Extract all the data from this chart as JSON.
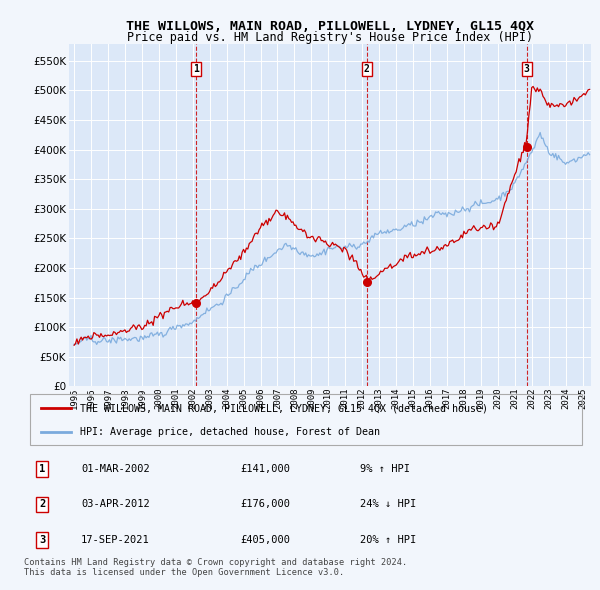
{
  "title": "THE WILLOWS, MAIN ROAD, PILLOWELL, LYDNEY, GL15 4QX",
  "subtitle": "Price paid vs. HM Land Registry's House Price Index (HPI)",
  "title_fontsize": 9.5,
  "subtitle_fontsize": 8.5,
  "ylabel_ticks": [
    "£0",
    "£50K",
    "£100K",
    "£150K",
    "£200K",
    "£250K",
    "£300K",
    "£350K",
    "£400K",
    "£450K",
    "£500K",
    "£550K"
  ],
  "ytick_values": [
    0,
    50000,
    100000,
    150000,
    200000,
    250000,
    300000,
    350000,
    400000,
    450000,
    500000,
    550000
  ],
  "ylim": [
    0,
    578000
  ],
  "xlim_start": 1994.7,
  "xlim_end": 2025.5,
  "background_color": "#dce8f8",
  "plot_bg_color": "#dce8f8",
  "grid_color": "#ffffff",
  "red_line_color": "#cc0000",
  "blue_line_color": "#7aaadd",
  "sale_marker_color": "#cc0000",
  "sale_dates": [
    2002.17,
    2012.26,
    2021.71
  ],
  "sale_prices": [
    141000,
    176000,
    405000
  ],
  "sale_labels": [
    "1",
    "2",
    "3"
  ],
  "sale_label_box_color": "#ffffff",
  "sale_label_border_color": "#cc0000",
  "vline_color": "#cc0000",
  "legend_entries": [
    "THE WILLOWS, MAIN ROAD, PILLOWELL, LYDNEY, GL15 4QX (detached house)",
    "HPI: Average price, detached house, Forest of Dean"
  ],
  "table_rows": [
    [
      "1",
      "01-MAR-2002",
      "£141,000",
      "9% ↑ HPI"
    ],
    [
      "2",
      "03-APR-2012",
      "£176,000",
      "24% ↓ HPI"
    ],
    [
      "3",
      "17-SEP-2021",
      "£405,000",
      "20% ↑ HPI"
    ]
  ],
  "footer_text": "Contains HM Land Registry data © Crown copyright and database right 2024.\nThis data is licensed under the Open Government Licence v3.0.",
  "xtick_years": [
    1995,
    1996,
    1997,
    1998,
    1999,
    2000,
    2001,
    2002,
    2003,
    2004,
    2005,
    2006,
    2007,
    2008,
    2009,
    2010,
    2011,
    2012,
    2013,
    2014,
    2015,
    2016,
    2017,
    2018,
    2019,
    2020,
    2021,
    2022,
    2023,
    2024,
    2025
  ]
}
